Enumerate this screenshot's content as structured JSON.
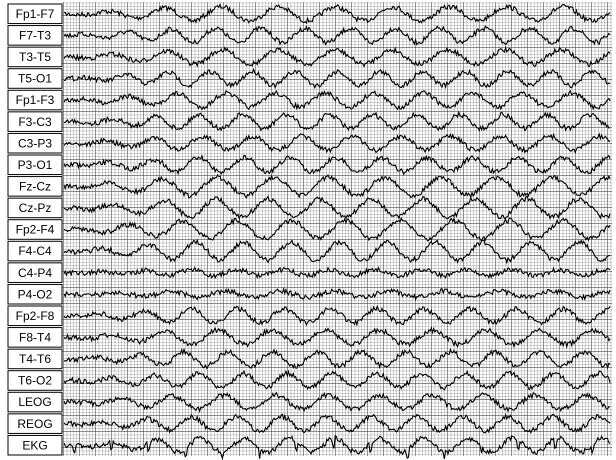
{
  "channels": [
    "Fp1-F7",
    "F7-T3",
    "T3-T5",
    "T5-O1",
    "Fp1-F3",
    "F3-C3",
    "C3-P3",
    "P3-O1",
    "Fz-Cz",
    "Cz-Pz",
    "Fp2-F4",
    "F4-C4",
    "C4-P4",
    "P4-O2",
    "Fp2-F8",
    "F8-T4",
    "T4-T6",
    "T6-O2",
    "LEOG",
    "REOG",
    "EKG"
  ]
}
